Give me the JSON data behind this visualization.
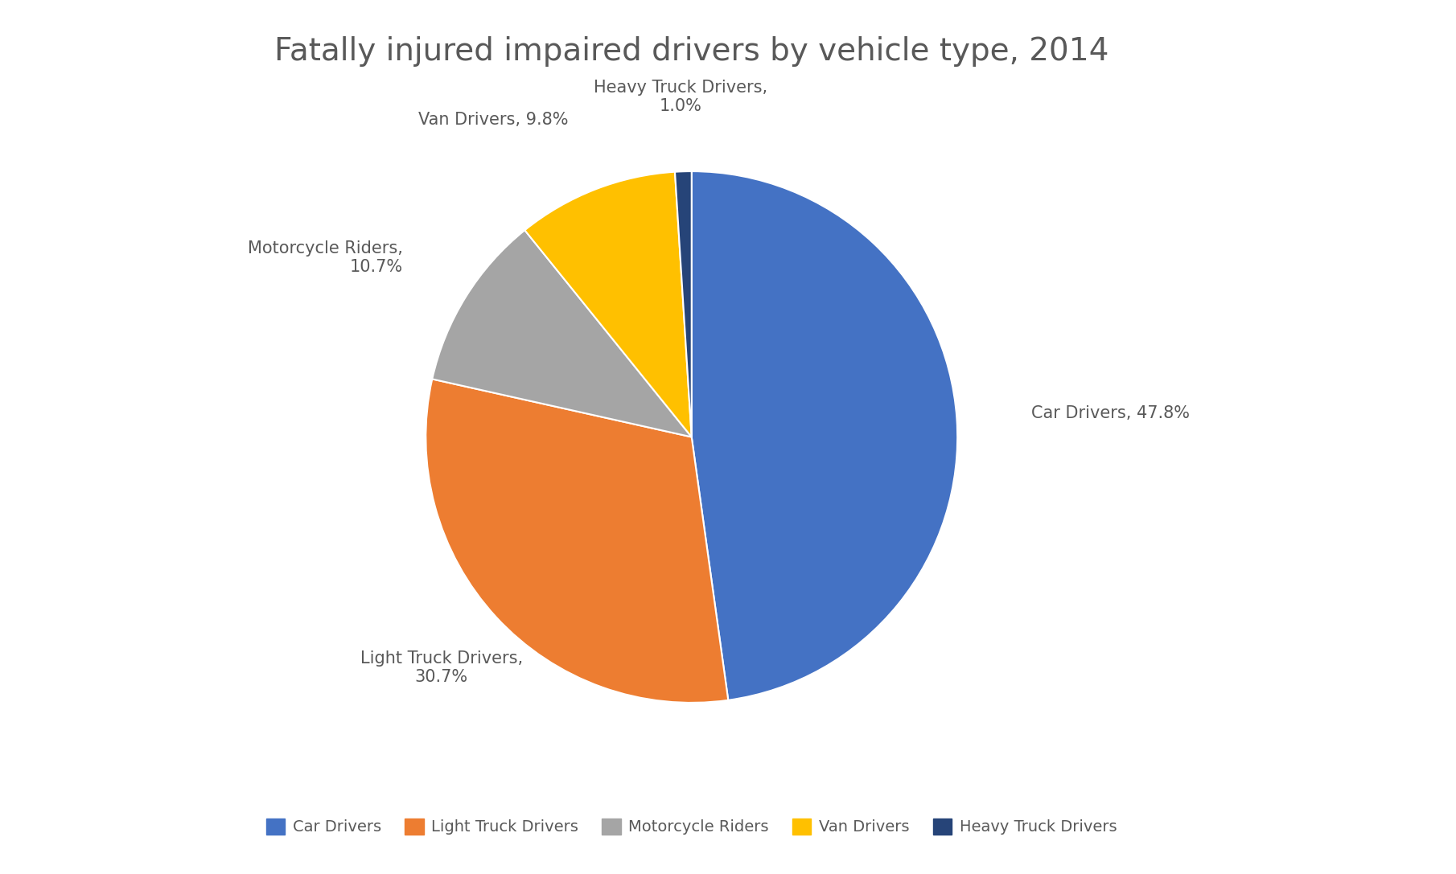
{
  "title": "Fatally injured impaired drivers by vehicle type, 2014",
  "categories": [
    "Car Drivers",
    "Light Truck Drivers",
    "Motorcycle Riders",
    "Van Drivers",
    "Heavy Truck Drivers"
  ],
  "values": [
    47.8,
    30.7,
    10.7,
    9.8,
    1.0
  ],
  "colors": [
    "#4472C4",
    "#ED7D31",
    "#A5A5A5",
    "#FFC000",
    "#264478"
  ],
  "startangle": 90,
  "title_fontsize": 28,
  "label_fontsize": 15,
  "legend_fontsize": 14,
  "background_color": "#ffffff",
  "text_color": "#595959"
}
